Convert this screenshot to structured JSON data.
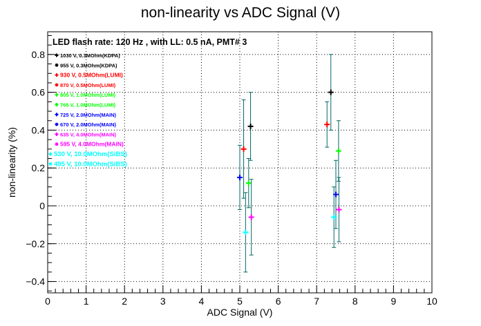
{
  "chart_data": {
    "type": "scatter",
    "title": "non-linearity vs ADC Signal (V)",
    "xlabel": "ADC Signal (V)",
    "ylabel": "non-linearity (%)",
    "xlim": [
      0,
      10
    ],
    "ylim": [
      -0.46,
      0.92
    ],
    "xticks": [
      0,
      1,
      2,
      3,
      4,
      5,
      6,
      7,
      8,
      9,
      10
    ],
    "yticks": [
      -0.4,
      -0.2,
      0,
      0.2,
      0.4,
      0.6,
      0.8
    ],
    "ytick_labels": [
      "−0.4",
      "−0.2",
      "0",
      "0.2",
      "0.4",
      "0.6",
      "0.8"
    ],
    "grid": true,
    "annotation": "LED flash rate: 120 Hz , with LL: 0.5 nA, PMT# 3",
    "legend_position": "top-left",
    "error_bar_color": "#006666",
    "series": [
      {
        "name": "1030 V, 0.3MOhm(KDPA)",
        "marker": "+",
        "color": "#000000",
        "font_size": 7.5,
        "points": [
          {
            "x": 5.28,
            "y": 0.42,
            "err": 0.18
          },
          {
            "x": 7.37,
            "y": 0.6,
            "err": 0.2
          }
        ]
      },
      {
        "name": "955 V, 0.3MOhm(KDPA)",
        "marker": "*",
        "color": "#000000",
        "font_size": 7.5,
        "points": []
      },
      {
        "name": "930 V, 0.5MOhm(LUMI)",
        "marker": "+",
        "color": "#ff0000",
        "font_size": 8.5,
        "points": [
          {
            "x": 5.1,
            "y": 0.3,
            "err": 0.26
          },
          {
            "x": 7.27,
            "y": 0.43,
            "err": 0.12
          }
        ]
      },
      {
        "name": "870 V, 0.5MOhm(LUMI)",
        "marker": "*",
        "color": "#ff0000",
        "font_size": 7.5,
        "points": []
      },
      {
        "name": "805 V, 1.0MOhm(LUMI)",
        "marker": "+",
        "color": "#00ff00",
        "font_size": 7.5,
        "points": [
          {
            "x": 5.23,
            "y": 0.12,
            "err": 0.13
          },
          {
            "x": 7.57,
            "y": 0.29,
            "err": 0.16
          }
        ]
      },
      {
        "name": "765 V, 1.0MOhm(LUMI)",
        "marker": "*",
        "color": "#00ff00",
        "font_size": 7.5,
        "points": []
      },
      {
        "name": "725 V, 2.0MOhm(MAIN)",
        "marker": "+",
        "color": "#0000ff",
        "font_size": 7.5,
        "points": [
          {
            "x": 5.0,
            "y": 0.15,
            "err": 0.17
          },
          {
            "x": 7.5,
            "y": 0.06,
            "err": 0.18
          }
        ]
      },
      {
        "name": "670 V, 2.0MOhm(MAIN)",
        "marker": "*",
        "color": "#0000ff",
        "font_size": 7.5,
        "points": []
      },
      {
        "name": "635 V, 4.0MOhm(MAIN)",
        "marker": "+",
        "color": "#ff00ff",
        "font_size": 7.5,
        "points": [
          {
            "x": 5.3,
            "y": -0.06,
            "err": 0.2
          },
          {
            "x": 7.58,
            "y": -0.02,
            "err": 0.17
          }
        ]
      },
      {
        "name": "595 V, 4.0MOhm(MAIN)",
        "marker": "*",
        "color": "#ff00ff",
        "font_size": 8.5,
        "points": []
      },
      {
        "name": "530 V, 10.0MOhm(SiBS)",
        "marker": "+",
        "color": "#00ffff",
        "font_size": 9.5,
        "points": [
          {
            "x": 5.15,
            "y": -0.14,
            "err": 0.21
          },
          {
            "x": 7.45,
            "y": -0.06,
            "err": 0.16
          }
        ]
      },
      {
        "name": "495 V, 10.0MOhm(SiBS)",
        "marker": "*",
        "color": "#00ffff",
        "font_size": 9.5,
        "points": []
      }
    ]
  }
}
